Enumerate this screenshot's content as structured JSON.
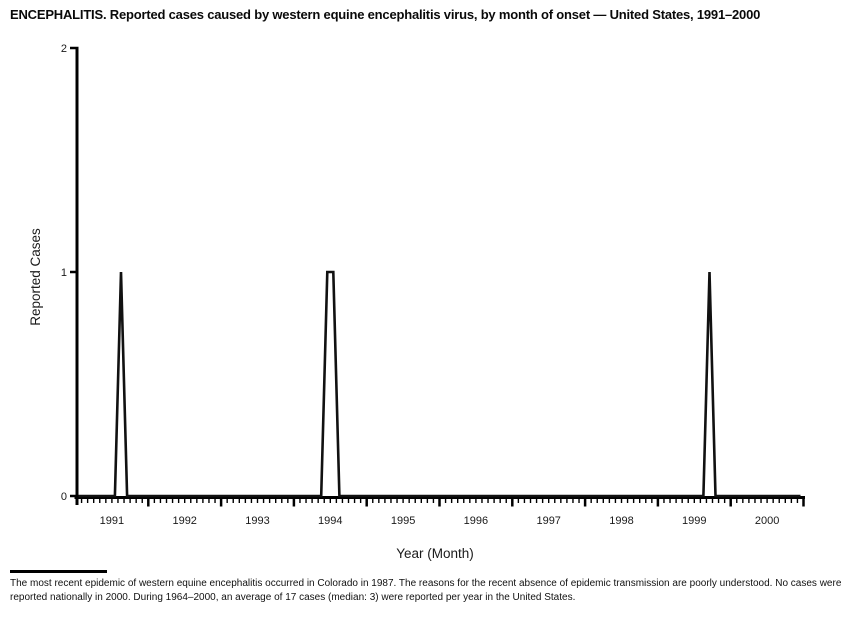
{
  "title": "ENCEPHALITIS. Reported cases caused by western equine encephalitis virus, by month of onset — United States, 1991–2000",
  "footnote": {
    "text": "The most recent epidemic of western equine encephalitis occurred in Colorado in 1987. The reasons for the recent absence of epidemic transmission are poorly understood. No cases were reported nationally in 2000. During 1964–2000, an average of 17 cases (median: 3) were reported per year in the United States."
  },
  "chart_data": {
    "type": "line",
    "title": "ENCEPHALITIS. Reported cases caused by western equine encephalitis virus, by month of onset — United States, 1991–2000",
    "xlabel": "Year (Month)",
    "ylabel": "Reported Cases",
    "ylim": [
      0,
      2
    ],
    "yticks": [
      "0",
      "1",
      "2"
    ],
    "x_years": [
      "1991",
      "1992",
      "1993",
      "1994",
      "1995",
      "1996",
      "1997",
      "1998",
      "1999",
      "2000"
    ],
    "months_per_year": 12,
    "x_minor_ticks": "monthly",
    "grid": false,
    "legend": false,
    "line_color": "#111111",
    "axis_color": "#000000",
    "series": [
      {
        "name": "Reported cases",
        "all_other_months_value": 0,
        "nonzero_points": [
          {
            "year": "1991",
            "month": "Aug",
            "value": 1
          },
          {
            "year": "1994",
            "month": "Jun",
            "value": 1
          },
          {
            "year": "1994",
            "month": "Jul",
            "value": 1
          },
          {
            "year": "1999",
            "month": "Sep",
            "value": 1
          }
        ]
      }
    ]
  }
}
